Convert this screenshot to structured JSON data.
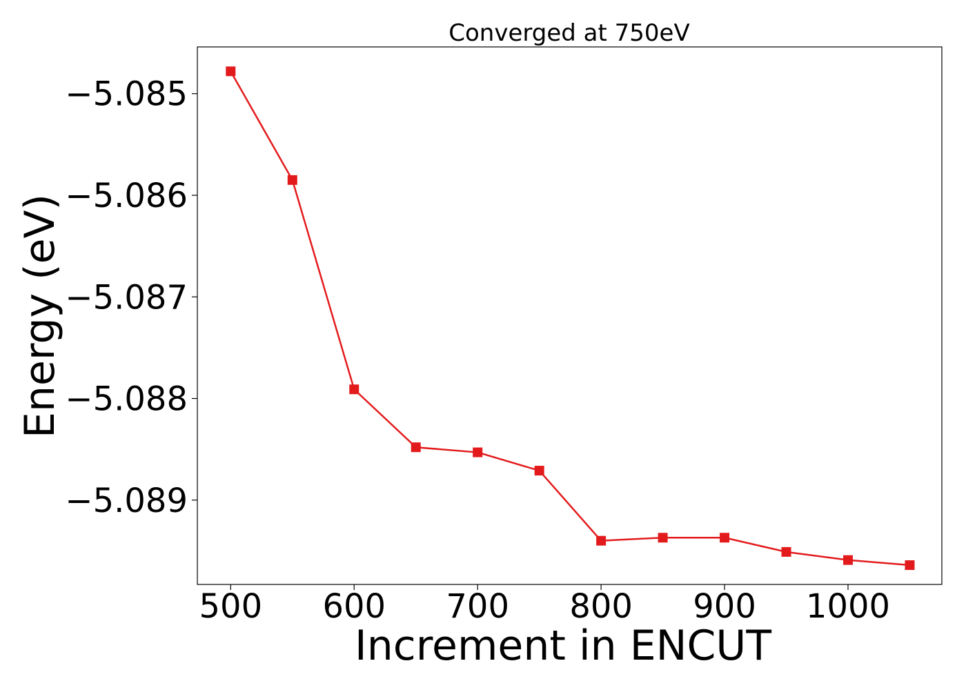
{
  "chart_data": {
    "type": "line",
    "title": "Converged at 750eV",
    "xlabel": "Increment in ENCUT",
    "ylabel": "Energy (eV)",
    "x": [
      500,
      550,
      600,
      650,
      700,
      750,
      800,
      850,
      900,
      950,
      1000,
      1050
    ],
    "series": [
      {
        "values": [
          -5.08478,
          -5.08585,
          -5.08791,
          -5.08848,
          -5.08853,
          -5.08871,
          -5.0894,
          -5.08937,
          -5.08937,
          -5.08951,
          -5.08959,
          -5.08964
        ],
        "color": "#e31a1c",
        "marker": "square"
      }
    ],
    "xticks": [
      500,
      600,
      700,
      800,
      900,
      1000
    ],
    "xtick_labels": [
      "500",
      "600",
      "700",
      "800",
      "900",
      "1000"
    ],
    "yticks": [
      -5.085,
      -5.086,
      -5.087,
      -5.088,
      -5.089
    ],
    "ytick_labels": [
      "−5.085",
      "−5.086",
      "−5.087",
      "−5.088",
      "−5.089"
    ],
    "xlim": [
      473,
      1076
    ],
    "ylim": [
      -5.08983,
      -5.08454
    ],
    "grid": false,
    "legend": false
  }
}
